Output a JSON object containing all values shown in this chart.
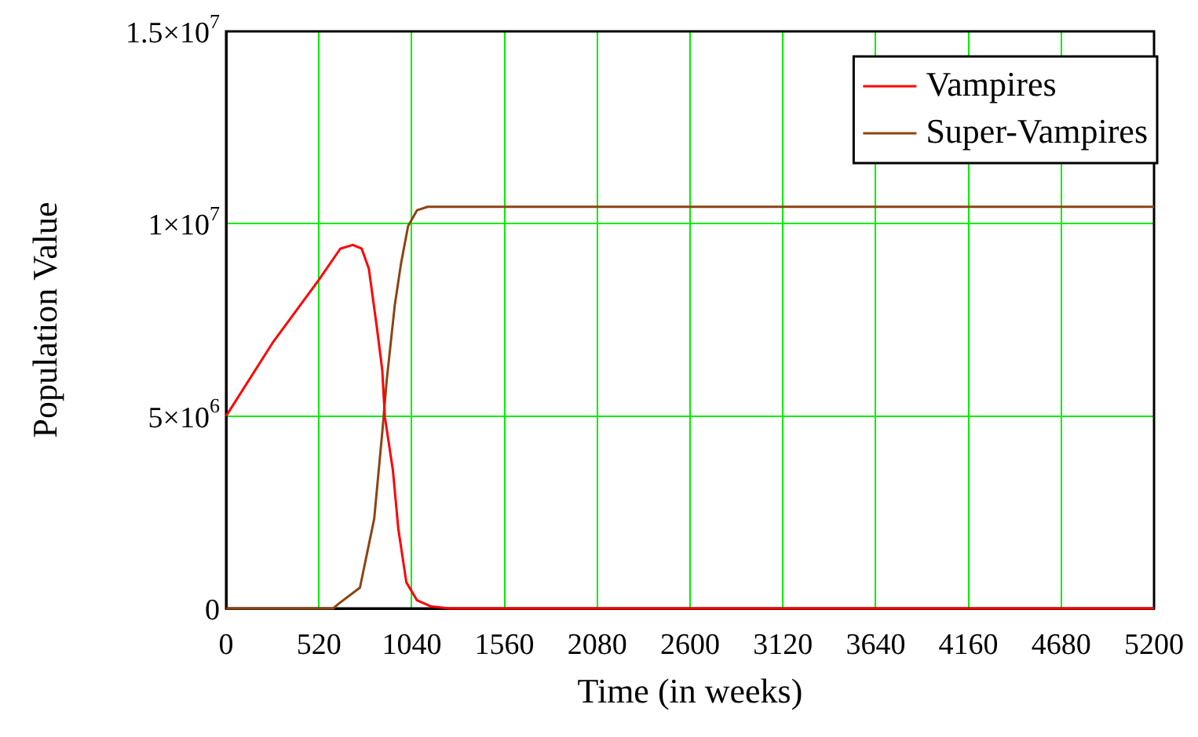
{
  "chart_data": {
    "type": "line",
    "xlabel": "Time (in weeks)",
    "ylabel": "Population Value",
    "xlim": [
      0,
      5200
    ],
    "xticks": [
      0,
      520,
      1040,
      1560,
      2080,
      2600,
      3120,
      3640,
      4160,
      4680,
      5200
    ],
    "ylim": [
      0,
      15000000
    ],
    "yticks": [
      0,
      {
        "value": 5000000,
        "label": "5×10$^{6}$"
      },
      {
        "value": 10000000,
        "label": "1×10$^{7}$"
      },
      {
        "value": 15000000,
        "label": "1.5×10$^{7}$"
      }
    ],
    "grid": true,
    "legend": "top right",
    "marker": "none",
    "line_style": "solid",
    "series": [
      {
        "name": "Vampires",
        "color": "#ff0000",
        "x": [
          0,
          260,
          520,
          640,
          710,
          760,
          800,
          845,
          875,
          890,
          935,
          965,
          1010,
          1070,
          1150,
          1250,
          5200
        ],
        "values": [
          5000000,
          6900000,
          8540000,
          9350000,
          9450000,
          9350000,
          8830000,
          7300000,
          6200000,
          4970000,
          3580000,
          2070000,
          680000,
          210000,
          50000,
          0,
          0
        ]
      },
      {
        "name": "Super-Vampires",
        "color": "#8b4513",
        "x": [
          0,
          600,
          630,
          750,
          830,
          875,
          900,
          945,
          980,
          1020,
          1070,
          1130,
          5200
        ],
        "values": [
          0,
          0,
          120000,
          540000,
          2330000,
          4570000,
          5930000,
          7870000,
          8960000,
          9940000,
          10350000,
          10440000,
          10440000
        ]
      }
    ]
  }
}
